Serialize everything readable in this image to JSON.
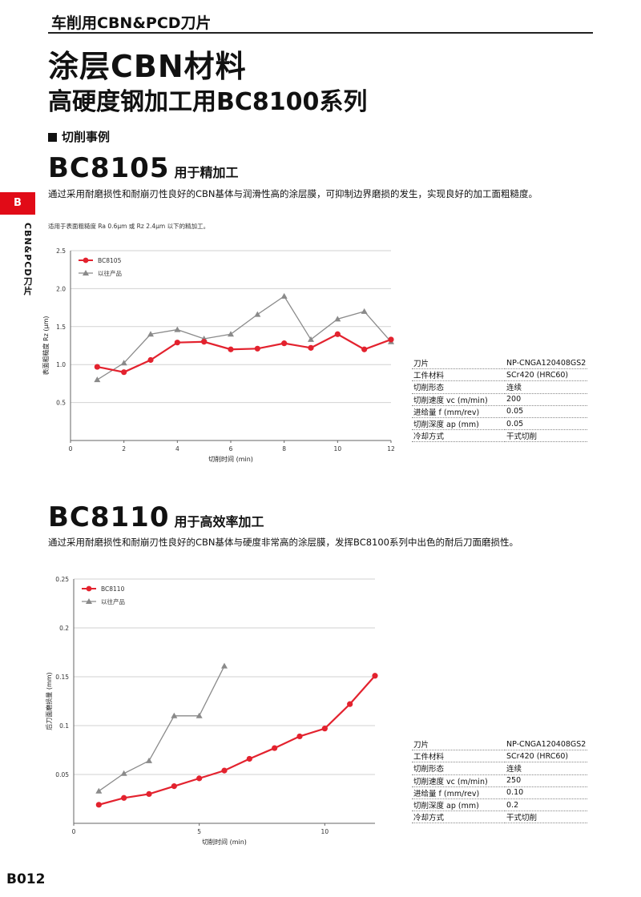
{
  "header": {
    "category": "车削用CBN&PCD刀片"
  },
  "title": {
    "line1": "涂层CBN材料",
    "line2": "高硬度钢加工用BC8100系列"
  },
  "section_label": "切削事例",
  "side_tab": {
    "letter": "B",
    "text": "CBN&PCD刀片"
  },
  "page_number": "B012",
  "block1": {
    "grade": "BC8105",
    "grade_subtitle": "用于精加工",
    "description": "通过采用耐磨损性和耐崩刃性良好的CBN基体与润滑性高的涂层膜，可抑制边界磨损的发生，实现良好的加工面粗糙度。",
    "note": "适用于表面粗糙度 Ra 0.6μm 或 Rz 2.4μm 以下的精加工。",
    "specs": [
      {
        "key": "刀片",
        "value": "NP-CNGA120408GS2"
      },
      {
        "key": "工件材料",
        "value": "SCr420 (HRC60)"
      },
      {
        "key": "切削形态",
        "value": "连续"
      },
      {
        "key": "切削速度 vc (m/min)",
        "value": "200"
      },
      {
        "key": "进给量 f (mm/rev)",
        "value": "0.05"
      },
      {
        "key": "切削深度 ap (mm)",
        "value": "0.05"
      },
      {
        "key": "冷却方式",
        "value": "干式切削"
      }
    ]
  },
  "block2": {
    "grade": "BC8110",
    "grade_subtitle": "用于高效率加工",
    "description": "通过采用耐磨损性和耐崩刃性良好的CBN基体与硬度非常高的涂层膜，发挥BC8100系列中出色的耐后刀面磨损性。",
    "specs": [
      {
        "key": "刀片",
        "value": "NP-CNGA120408GS2"
      },
      {
        "key": "工件材料",
        "value": "SCr420 (HRC60)"
      },
      {
        "key": "切削形态",
        "value": "连续"
      },
      {
        "key": "切削速度 vc (m/min)",
        "value": "250"
      },
      {
        "key": "进给量 f (mm/rev)",
        "value": "0.10"
      },
      {
        "key": "切削深度 ap (mm)",
        "value": "0.2"
      },
      {
        "key": "冷却方式",
        "value": "干式切削"
      }
    ]
  },
  "colors": {
    "accent": "#e10b17",
    "red_series": "#e3222e",
    "gray_series": "#8a8a8a"
  },
  "chart_data": [
    {
      "type": "line",
      "xlabel": "切削时间 (min)",
      "ylabel": "表面粗糙度 Rz (μm)",
      "xlim": [
        0,
        12
      ],
      "ylim": [
        0,
        2.5
      ],
      "xticks": [
        0,
        2,
        4,
        6,
        8,
        10,
        12
      ],
      "yticks": [
        0.5,
        1.0,
        1.5,
        2.0,
        2.5
      ],
      "ytick_labels": [
        "0.5",
        "1.0",
        "1.5",
        "2.0",
        "2.5"
      ],
      "legend_position": "top-left",
      "grid": true,
      "series": [
        {
          "name": "BC8105",
          "marker": "circle",
          "color": "#e3222e",
          "x": [
            1,
            2,
            3,
            4,
            5,
            6,
            7,
            8,
            9,
            10,
            11,
            12
          ],
          "y": [
            0.97,
            0.9,
            1.06,
            1.29,
            1.3,
            1.2,
            1.21,
            1.28,
            1.22,
            1.4,
            1.2,
            1.33
          ]
        },
        {
          "name": "以往产品",
          "marker": "triangle",
          "color": "#8a8a8a",
          "x": [
            1,
            2,
            3,
            4,
            5,
            6,
            7,
            8,
            9,
            10,
            11,
            12
          ],
          "y": [
            0.8,
            1.02,
            1.4,
            1.46,
            1.34,
            1.4,
            1.66,
            1.9,
            1.33,
            1.6,
            1.7,
            1.3
          ]
        }
      ]
    },
    {
      "type": "line",
      "xlabel": "切削时间 (min)",
      "ylabel": "后刀面磨损量 (mm)",
      "xlim": [
        0,
        12
      ],
      "ylim": [
        0,
        0.25
      ],
      "xticks": [
        0,
        5,
        10
      ],
      "yticks": [
        0.05,
        0.1,
        0.15,
        0.2,
        0.25
      ],
      "ytick_labels": [
        "0.05",
        "0.1",
        "0.15",
        "0.2",
        "0.25"
      ],
      "legend_position": "top-left",
      "grid": true,
      "series": [
        {
          "name": "BC8110",
          "marker": "circle",
          "color": "#e3222e",
          "x": [
            1,
            2,
            3,
            4,
            5,
            6,
            7,
            8,
            9,
            10,
            11,
            12
          ],
          "y": [
            0.019,
            0.026,
            0.03,
            0.038,
            0.046,
            0.054,
            0.066,
            0.077,
            0.089,
            0.097,
            0.122,
            0.151
          ]
        },
        {
          "name": "以往产品",
          "marker": "triangle",
          "color": "#8a8a8a",
          "x": [
            1,
            2,
            3,
            4,
            5,
            6
          ],
          "y": [
            0.033,
            0.051,
            0.064,
            0.11,
            0.11,
            0.161
          ]
        }
      ]
    }
  ]
}
